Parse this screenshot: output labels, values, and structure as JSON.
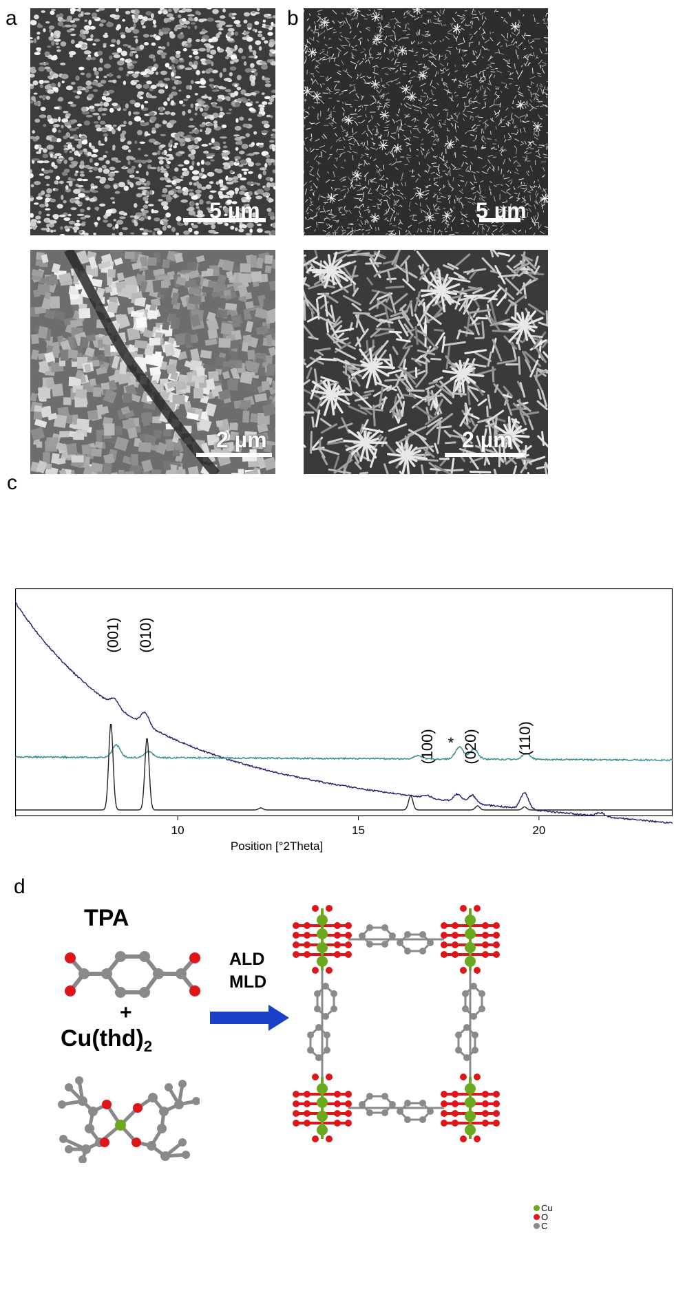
{
  "panels": {
    "a": {
      "letter": "a",
      "top_scale": "5 µm",
      "bottom_scale": "2 µm"
    },
    "b": {
      "letter": "b",
      "top_scale": "5 µm",
      "bottom_scale": "2 µm"
    },
    "c": {
      "letter": "c"
    },
    "d": {
      "letter": "d"
    }
  },
  "colors": {
    "trace_top": "#1f1f6e",
    "trace_mid": "#2e8b8b",
    "trace_bottom": "#222222",
    "cu": "#6aa91e",
    "o": "#e0151a",
    "c": "#8a8a8a",
    "arrow": "#1a3fc8"
  },
  "chart_data": {
    "type": "line",
    "title": "",
    "xlabel": "Position [°2Theta]",
    "ylabel": "",
    "xlim": [
      5.5,
      23.7
    ],
    "xticks": [
      "10",
      "15",
      "20"
    ],
    "xtick_values": [
      10,
      15,
      20
    ],
    "series": [
      {
        "peaks": [
          [
            8.25,
            0.06
          ],
          [
            9.1,
            0.1
          ],
          [
            16.9,
            0.02
          ],
          [
            17.75,
            0.06
          ],
          [
            18.15,
            0.065
          ],
          [
            19.6,
            0.13
          ],
          [
            21.7,
            0.03
          ]
        ]
      },
      {
        "peaks": [
          [
            8.3,
            0.12
          ],
          [
            9.2,
            0.06
          ],
          [
            16.65,
            0.03
          ],
          [
            17.8,
            0.12
          ],
          [
            18.2,
            0.1
          ],
          [
            19.65,
            0.06
          ]
        ]
      },
      {
        "peaks": [
          [
            8.15,
            0.42
          ],
          [
            9.15,
            0.35
          ],
          [
            12.3,
            0.01
          ],
          [
            16.45,
            0.07
          ],
          [
            18.3,
            0.02
          ],
          [
            19.6,
            0.015
          ]
        ]
      }
    ],
    "peak_labels": [
      {
        "text": "(001)",
        "x": 8.2
      },
      {
        "text": "(010)",
        "x": 9.1
      },
      {
        "text": "(100)",
        "x": 16.9
      },
      {
        "text": "*",
        "x": 17.6
      },
      {
        "text": "(020)",
        "x": 18.1
      },
      {
        "text": "(110)",
        "x": 19.6
      }
    ]
  },
  "scheme": {
    "tpa_label": "TPA",
    "plus": "+",
    "cu_label_main": "Cu(thd)",
    "cu_label_sub": "2",
    "arrow_label_1": "ALD",
    "arrow_label_2": "MLD",
    "legend": [
      {
        "symbol": "Cu",
        "color": "#6aa91e"
      },
      {
        "symbol": "O",
        "color": "#e0151a"
      },
      {
        "symbol": "C",
        "color": "#8a8a8a"
      }
    ]
  }
}
